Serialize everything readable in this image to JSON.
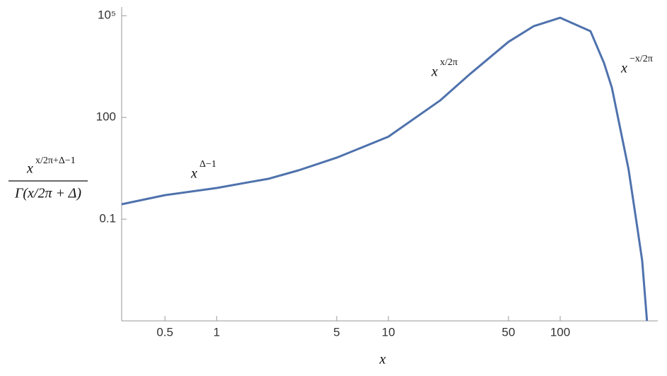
{
  "chart_data": {
    "type": "line",
    "xscale": "log",
    "yscale": "log",
    "x_label": "x",
    "y_label": {
      "numerator_base": "x",
      "numerator_exponent": "x/2π+Δ−1",
      "denominator": "Γ(x/2π + Δ)"
    },
    "annotations": [
      {
        "base": "x",
        "exponent": "Δ−1"
      },
      {
        "base": "x",
        "exponent": "x/2π"
      },
      {
        "base": "x",
        "exponent": "−x/2π"
      }
    ],
    "x": [
      0.28,
      0.5,
      1,
      1.5,
      2,
      3,
      5,
      10,
      20,
      30,
      50,
      70,
      100,
      150,
      180,
      200,
      250,
      280,
      300,
      320
    ],
    "series": [
      {
        "color": "#4f72ad",
        "values": [
          0.275,
          0.51,
          0.83,
          1.2,
          1.55,
          2.75,
          6.5,
          27,
          316,
          1950,
          17000,
          49000,
          87000,
          35000,
          4000,
          750,
          3,
          0.065,
          0.006,
          0.0001
        ]
      }
    ],
    "xlim": [
      0.28,
      370
    ],
    "ylim": [
      0.0001,
      180000
    ],
    "xticks": [
      0.5,
      1,
      5,
      10,
      50,
      100
    ],
    "yticks": [
      0.1,
      100,
      {
        "value": 100000,
        "label": "10⁵"
      }
    ],
    "grid": false
  }
}
